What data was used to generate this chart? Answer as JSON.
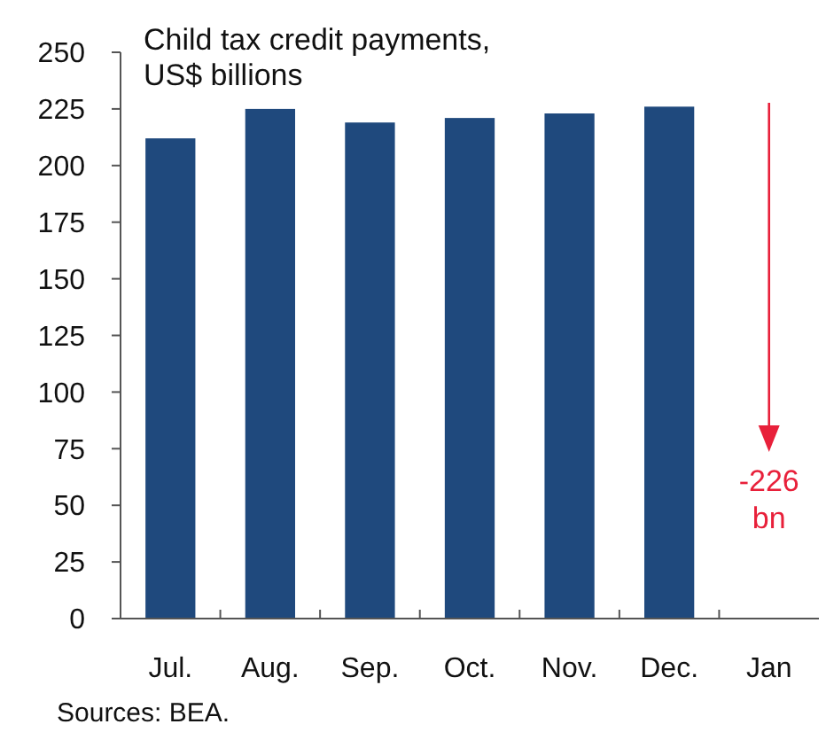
{
  "chart_data": {
    "type": "bar",
    "title": "Child tax credit payments, US$ billions",
    "categories": [
      "Jul.",
      "Aug.",
      "Sep.",
      "Oct.",
      "Nov.",
      "Dec.",
      "Jan"
    ],
    "values": [
      212,
      225,
      219,
      221,
      223,
      226,
      null
    ],
    "color": "#1f497d",
    "ylim": [
      0,
      250
    ],
    "yticks": [
      0,
      25,
      50,
      75,
      100,
      125,
      150,
      175,
      200,
      225,
      250
    ],
    "grid": false,
    "annotations": [
      "-226 bn",
      "Sources: BEA."
    ]
  }
}
